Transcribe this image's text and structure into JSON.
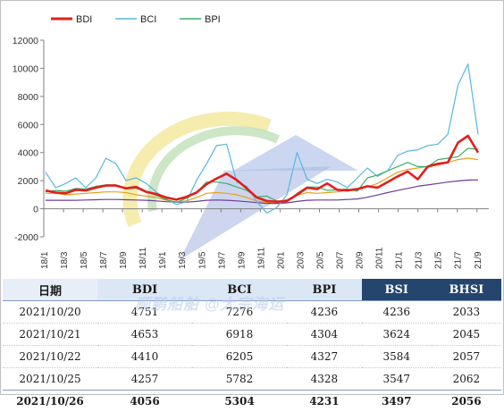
{
  "chart_data": {
    "type": "line",
    "legend_position": "top-left",
    "ylim": [
      -2000,
      12000
    ],
    "yticks": [
      "-2000",
      "0",
      "2000",
      "4000",
      "6000",
      "8000",
      "10000",
      "12000"
    ],
    "xticks": [
      "18/1",
      "18/3",
      "18/5",
      "18/7",
      "18/9",
      "18/11",
      "19/1",
      "19/3",
      "19/5",
      "19/7",
      "19/9",
      "19/11",
      "20/1",
      "20/3",
      "20/5",
      "20/7",
      "20/9",
      "20/11",
      "21/1",
      "21/3",
      "21/5",
      "21/7",
      "21/9"
    ],
    "x_start": "2018-01",
    "x_end": "2021-10",
    "grid": false,
    "series": [
      {
        "name": "BDI",
        "color": "#e0201b",
        "values": [
          1300,
          1150,
          1100,
          1350,
          1300,
          1500,
          1650,
          1650,
          1450,
          1550,
          1200,
          1050,
          800,
          650,
          850,
          1150,
          1750,
          2150,
          2500,
          2050,
          1450,
          800,
          550,
          500,
          550,
          1000,
          1500,
          1400,
          1800,
          1350,
          1300,
          1400,
          1600,
          1500,
          1900,
          2300,
          2650,
          2100,
          3000,
          3200,
          3300,
          4700,
          5200,
          4000
        ]
      },
      {
        "name": "BCI",
        "color": "#58b6e0",
        "values": [
          2600,
          1500,
          1800,
          2200,
          1500,
          2200,
          3600,
          3200,
          2000,
          2200,
          1800,
          1200,
          700,
          300,
          500,
          2000,
          3200,
          4500,
          4600,
          1900,
          1600,
          500,
          -300,
          100,
          1000,
          4000,
          2100,
          1800,
          2100,
          1900,
          1500,
          2200,
          2900,
          2300,
          2700,
          3800,
          4100,
          4200,
          4500,
          4600,
          5300,
          8800,
          10300,
          5300
        ]
      },
      {
        "name": "BPI",
        "color": "#3fae6a",
        "values": [
          1200,
          1300,
          1250,
          1450,
          1400,
          1600,
          1700,
          1700,
          1450,
          1450,
          1250,
          950,
          650,
          450,
          750,
          1150,
          1900,
          1900,
          1800,
          1550,
          1300,
          850,
          900,
          550,
          500,
          1100,
          1550,
          1550,
          1300,
          1350,
          1400,
          1250,
          2200,
          2400,
          2700,
          3000,
          3300,
          3000,
          3000,
          3500,
          3600,
          3700,
          4300,
          4231
        ]
      },
      {
        "name": "BSI",
        "color": "#e6a21e",
        "values": [
          1100,
          1100,
          1000,
          1050,
          1100,
          1150,
          1200,
          1200,
          1150,
          1000,
          900,
          800,
          600,
          500,
          550,
          800,
          1100,
          1150,
          1100,
          1000,
          800,
          550,
          450,
          500,
          650,
          950,
          1150,
          1100,
          1150,
          1200,
          1300,
          1350,
          1550,
          1800,
          2200,
          2600,
          2800,
          2900,
          3000,
          3100,
          3300,
          3500,
          3600,
          3497
        ]
      },
      {
        "name": "BHSI",
        "color": "#6c3c96",
        "values": [
          600,
          600,
          600,
          600,
          620,
          640,
          660,
          660,
          640,
          620,
          600,
          560,
          500,
          470,
          470,
          520,
          600,
          620,
          600,
          560,
          500,
          440,
          380,
          380,
          420,
          520,
          600,
          620,
          620,
          620,
          660,
          700,
          820,
          980,
          1150,
          1300,
          1450,
          1600,
          1700,
          1800,
          1900,
          1980,
          2040,
          2056
        ]
      }
    ]
  },
  "legend": [
    {
      "label": "BDI",
      "color": "#e0201b"
    },
    {
      "label": "BCI",
      "color": "#58b6e0"
    },
    {
      "label": "BPI",
      "color": "#3fae6a"
    }
  ],
  "table": {
    "headers": [
      "日期",
      "BDI",
      "BCI",
      "BPI",
      "BSI",
      "BHSI"
    ],
    "rows": [
      [
        "2021/10/20",
        "4751",
        "7276",
        "4236",
        "4236",
        "2033"
      ],
      [
        "2021/10/21",
        "4653",
        "6918",
        "4304",
        "3624",
        "2045"
      ],
      [
        "2021/10/22",
        "4410",
        "6205",
        "4327",
        "3584",
        "2057"
      ],
      [
        "2021/10/25",
        "4257",
        "5782",
        "4328",
        "3547",
        "2062"
      ],
      [
        "2021/10/26",
        "4056",
        "5304",
        "4231",
        "3497",
        "2056"
      ]
    ]
  },
  "watermark": "顺鹏船舶 @大宗海运"
}
